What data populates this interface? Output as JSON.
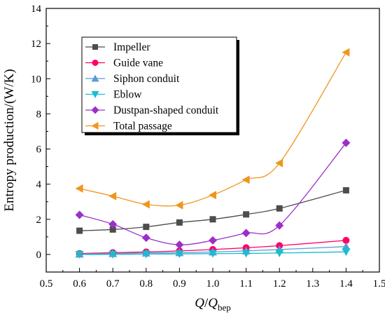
{
  "chart_data": {
    "type": "line",
    "title": "",
    "xlabel": {
      "main": "Q",
      "slash": "/",
      "main2": "Q",
      "sub": "bep"
    },
    "ylabel": "Entropy production/(W/K)",
    "xlim": [
      0.5,
      1.5
    ],
    "ylim": [
      -1,
      14
    ],
    "xticks": [
      "0.5",
      "0.6",
      "0.7",
      "0.8",
      "0.9",
      "1.0",
      "1.1",
      "1.2",
      "1.3",
      "1.4",
      "1.5"
    ],
    "yticks": [
      "0",
      "2",
      "4",
      "6",
      "8",
      "10",
      "12",
      "14"
    ],
    "grid": false,
    "legend_position": "top-left",
    "x": [
      0.6,
      0.7,
      0.8,
      0.9,
      1.0,
      1.1,
      1.2,
      1.4
    ],
    "series": [
      {
        "name": "Impeller",
        "marker": "square",
        "color": "#4d4d4d",
        "values": [
          1.35,
          1.42,
          1.57,
          1.82,
          2.0,
          2.28,
          2.62,
          3.65
        ]
      },
      {
        "name": "Guide vane",
        "marker": "circle",
        "color": "#ff0066",
        "values": [
          0.05,
          0.1,
          0.14,
          0.2,
          0.28,
          0.38,
          0.5,
          0.8
        ]
      },
      {
        "name": "Siphon conduit",
        "marker": "triangle-up",
        "color": "#5b9bd5",
        "values": [
          0.02,
          0.05,
          0.08,
          0.1,
          0.14,
          0.2,
          0.28,
          0.45
        ]
      },
      {
        "name": "Eblow",
        "marker": "triangle-down",
        "color": "#17becf",
        "values": [
          0.0,
          0.0,
          0.02,
          0.03,
          0.05,
          0.06,
          0.08,
          0.15
        ]
      },
      {
        "name": "Dustpan-shaped conduit",
        "marker": "diamond",
        "color": "#9b30c8",
        "values": [
          2.25,
          1.72,
          0.95,
          0.55,
          0.8,
          1.22,
          1.65,
          6.35
        ]
      },
      {
        "name": "Total passage",
        "marker": "triangle-left",
        "color": "#f0961e",
        "values": [
          3.75,
          3.32,
          2.85,
          2.8,
          3.38,
          4.25,
          5.2,
          11.5
        ]
      }
    ]
  }
}
